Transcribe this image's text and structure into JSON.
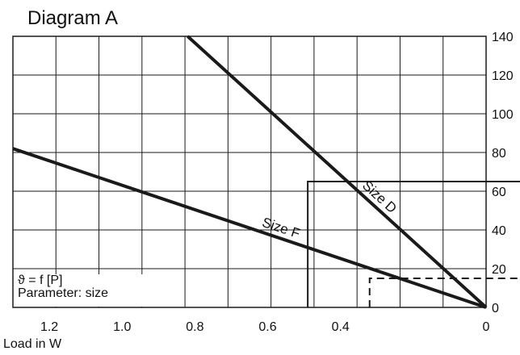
{
  "chart_data": {
    "type": "line",
    "title": "Diagram A",
    "xlabel": "Load in W",
    "ylabel": "",
    "x_reversed": true,
    "xlim": [
      0,
      1.3
    ],
    "ylim": [
      0,
      140
    ],
    "x_ticks": [
      "1.2",
      "1.0",
      "0.8",
      "0.6",
      "0.4",
      "0"
    ],
    "y_ticks": [
      "0",
      "20",
      "40",
      "60",
      "80",
      "100",
      "120",
      "140"
    ],
    "grid": true,
    "series": [
      {
        "name": "Size D",
        "x": [
          0.0,
          0.82
        ],
        "y": [
          0,
          140
        ]
      },
      {
        "name": "Size F",
        "x": [
          0.0,
          1.3
        ],
        "y": [
          0,
          82
        ]
      }
    ],
    "annotations": {
      "formula": "ϑ = f [P]",
      "parameter": "Parameter: size"
    },
    "reference_lines": [
      {
        "style": "solid",
        "x": 0.49,
        "y": 65
      },
      {
        "style": "dashed",
        "x": 0.32,
        "y": 15
      }
    ],
    "colors": {
      "line": "#1a1a1a",
      "grid": "#1a1a1a",
      "background": "#ffffff"
    }
  }
}
